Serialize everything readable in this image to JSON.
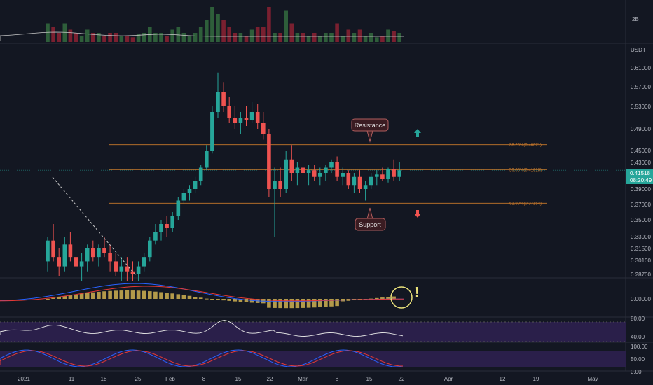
{
  "chart_data": {
    "type": "candlestick",
    "price_unit": "USDT",
    "volume_axis_label": "2B",
    "y_ticks": [
      "0.61000",
      "0.57000",
      "0.53000",
      "0.49000",
      "0.45000",
      "0.43000",
      "0.41000",
      "0.39000",
      "0.37000",
      "0.35000",
      "0.33000",
      "0.31500",
      "0.30100",
      "0.28700"
    ],
    "x_ticks": [
      "2021",
      "11",
      "18",
      "25",
      "Feb",
      "8",
      "15",
      "22",
      "Mar",
      "8",
      "15",
      "22",
      "Apr",
      "12",
      "19",
      "May"
    ],
    "current_price": "0.41518",
    "countdown": "08:20:49",
    "fib_levels": [
      {
        "label": "38.20%(0.46071)",
        "value": 0.46071
      },
      {
        "label": "50.00%(0.41613)",
        "value": 0.41613
      },
      {
        "label": "61.80%(0.37154)",
        "value": 0.37154
      }
    ],
    "annotations": {
      "resistance": "Resistance",
      "support": "Support",
      "exclamation": "!"
    },
    "macd": {
      "tick": "0.00000"
    },
    "rsi": {
      "ticks": [
        "80.00",
        "40.00"
      ]
    },
    "stoch": {
      "ticks": [
        "100.00",
        "50.00",
        "0.00"
      ]
    },
    "colors": {
      "up": "#26a69a",
      "down": "#ef5350",
      "fib": "#c8782a",
      "background": "#131722"
    },
    "ohlc": [
      [
        0.3,
        0.33,
        0.29,
        0.325
      ],
      [
        0.325,
        0.345,
        0.3,
        0.305
      ],
      [
        0.305,
        0.315,
        0.285,
        0.295
      ],
      [
        0.295,
        0.33,
        0.29,
        0.32
      ],
      [
        0.32,
        0.335,
        0.3,
        0.305
      ],
      [
        0.305,
        0.32,
        0.285,
        0.295
      ],
      [
        0.295,
        0.31,
        0.28,
        0.3
      ],
      [
        0.3,
        0.32,
        0.29,
        0.315
      ],
      [
        0.315,
        0.325,
        0.3,
        0.305
      ],
      [
        0.305,
        0.32,
        0.295,
        0.315
      ],
      [
        0.315,
        0.33,
        0.305,
        0.31
      ],
      [
        0.31,
        0.32,
        0.29,
        0.3
      ],
      [
        0.3,
        0.31,
        0.285,
        0.29
      ],
      [
        0.29,
        0.305,
        0.28,
        0.295
      ],
      [
        0.295,
        0.305,
        0.28,
        0.29
      ],
      [
        0.29,
        0.3,
        0.28,
        0.287
      ],
      [
        0.287,
        0.3,
        0.28,
        0.295
      ],
      [
        0.295,
        0.31,
        0.29,
        0.305
      ],
      [
        0.305,
        0.33,
        0.3,
        0.325
      ],
      [
        0.325,
        0.345,
        0.32,
        0.335
      ],
      [
        0.335,
        0.35,
        0.325,
        0.345
      ],
      [
        0.345,
        0.355,
        0.33,
        0.34
      ],
      [
        0.34,
        0.36,
        0.335,
        0.355
      ],
      [
        0.355,
        0.38,
        0.35,
        0.375
      ],
      [
        0.375,
        0.39,
        0.37,
        0.385
      ],
      [
        0.385,
        0.395,
        0.375,
        0.39
      ],
      [
        0.39,
        0.405,
        0.385,
        0.4
      ],
      [
        0.4,
        0.425,
        0.395,
        0.42
      ],
      [
        0.42,
        0.46,
        0.415,
        0.45
      ],
      [
        0.45,
        0.53,
        0.445,
        0.52
      ],
      [
        0.52,
        0.6,
        0.51,
        0.56
      ],
      [
        0.56,
        0.58,
        0.52,
        0.53
      ],
      [
        0.53,
        0.55,
        0.5,
        0.51
      ],
      [
        0.51,
        0.53,
        0.49,
        0.5
      ],
      [
        0.5,
        0.52,
        0.48,
        0.51
      ],
      [
        0.51,
        0.53,
        0.495,
        0.505
      ],
      [
        0.505,
        0.54,
        0.5,
        0.52
      ],
      [
        0.52,
        0.535,
        0.49,
        0.5
      ],
      [
        0.5,
        0.52,
        0.47,
        0.48
      ],
      [
        0.48,
        0.49,
        0.38,
        0.39
      ],
      [
        0.39,
        0.42,
        0.33,
        0.4
      ],
      [
        0.4,
        0.42,
        0.38,
        0.39
      ],
      [
        0.39,
        0.45,
        0.385,
        0.435
      ],
      [
        0.435,
        0.46,
        0.4,
        0.41
      ],
      [
        0.41,
        0.43,
        0.395,
        0.42
      ],
      [
        0.42,
        0.43,
        0.4,
        0.41
      ],
      [
        0.41,
        0.425,
        0.395,
        0.415
      ],
      [
        0.415,
        0.425,
        0.4,
        0.405
      ],
      [
        0.405,
        0.42,
        0.395,
        0.41
      ],
      [
        0.41,
        0.425,
        0.4,
        0.42
      ],
      [
        0.42,
        0.435,
        0.41,
        0.43
      ],
      [
        0.43,
        0.44,
        0.4,
        0.405
      ],
      [
        0.405,
        0.42,
        0.395,
        0.41
      ],
      [
        0.41,
        0.415,
        0.39,
        0.395
      ],
      [
        0.395,
        0.41,
        0.385,
        0.405
      ],
      [
        0.405,
        0.415,
        0.385,
        0.39
      ],
      [
        0.39,
        0.4,
        0.375,
        0.395
      ],
      [
        0.395,
        0.41,
        0.39,
        0.405
      ],
      [
        0.405,
        0.415,
        0.395,
        0.408
      ],
      [
        0.408,
        0.42,
        0.4,
        0.403
      ],
      [
        0.403,
        0.42,
        0.398,
        0.418
      ],
      [
        0.418,
        0.435,
        0.4,
        0.405
      ],
      [
        0.405,
        0.43,
        0.4,
        0.415
      ]
    ]
  }
}
